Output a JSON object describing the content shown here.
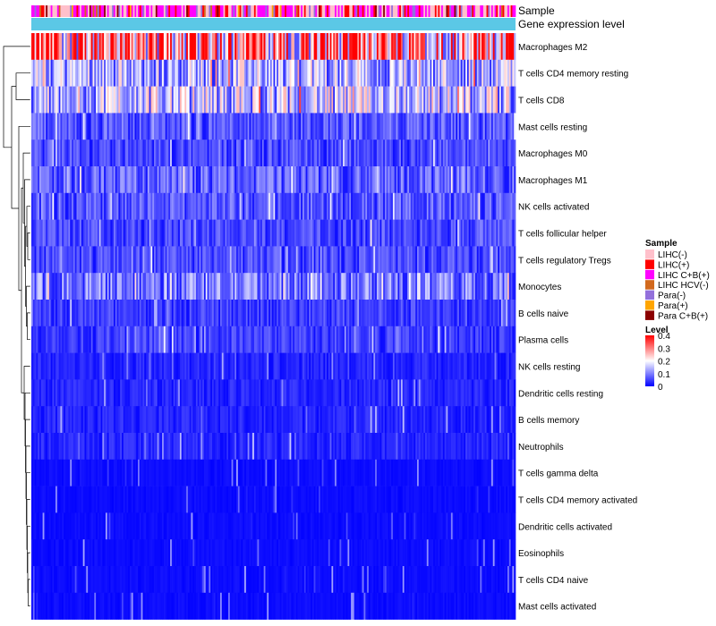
{
  "chart_data": {
    "type": "heatmap",
    "title": "",
    "annotation_tracks": [
      "Sample",
      "Gene expression level"
    ],
    "rows": [
      {
        "name": "Macrophages M2",
        "mean": 0.32
      },
      {
        "name": "T cells CD4 memory resting",
        "mean": 0.15
      },
      {
        "name": "T cells CD8",
        "mean": 0.16
      },
      {
        "name": "Mast cells resting",
        "mean": 0.07
      },
      {
        "name": "Macrophages M0",
        "mean": 0.06
      },
      {
        "name": "Macrophages M1",
        "mean": 0.08
      },
      {
        "name": "NK cells activated",
        "mean": 0.07
      },
      {
        "name": "T cells follicular helper",
        "mean": 0.06
      },
      {
        "name": "T cells regulatory  Tregs",
        "mean": 0.06
      },
      {
        "name": "Monocytes",
        "mean": 0.1
      },
      {
        "name": "B cells naive",
        "mean": 0.05
      },
      {
        "name": "Plasma cells",
        "mean": 0.05
      },
      {
        "name": "NK cells resting",
        "mean": 0.03
      },
      {
        "name": "Dendritic cells resting",
        "mean": 0.03
      },
      {
        "name": "B cells memory",
        "mean": 0.03
      },
      {
        "name": "Neutrophils",
        "mean": 0.03
      },
      {
        "name": "T cells gamma delta",
        "mean": 0.01
      },
      {
        "name": "T cells CD4 memory activated",
        "mean": 0.01
      },
      {
        "name": "Dendritic cells activated",
        "mean": 0.01
      },
      {
        "name": "Eosinophils",
        "mean": 0.01
      },
      {
        "name": "T cells CD4 naive",
        "mean": 0.01
      },
      {
        "name": "Mast cells activated",
        "mean": 0.01
      }
    ],
    "column_count": 300,
    "sample_legend": {
      "title": "Sample",
      "items": [
        {
          "label": "LIHC(-)",
          "color": "#ffc0cb"
        },
        {
          "label": "LIHC(+)",
          "color": "#ff0000"
        },
        {
          "label": "LIHC C+B(+)",
          "color": "#ff00ff"
        },
        {
          "label": "LIHC HCV(-)",
          "color": "#d2691e"
        },
        {
          "label": "Para(-)",
          "color": "#9370db"
        },
        {
          "label": "Para(+)",
          "color": "#ffa500"
        },
        {
          "label": "Para C+B(+)",
          "color": "#8b0000"
        }
      ]
    },
    "level_legend": {
      "title": "Level",
      "ticks": [
        "0.4",
        "0.3",
        "0.2",
        "0.1",
        "0"
      ],
      "range": [
        0,
        0.4
      ],
      "colors": [
        "#0000ff",
        "#ffffff",
        "#ff0000"
      ]
    },
    "gene_expression_color": "#5bc8e6"
  }
}
